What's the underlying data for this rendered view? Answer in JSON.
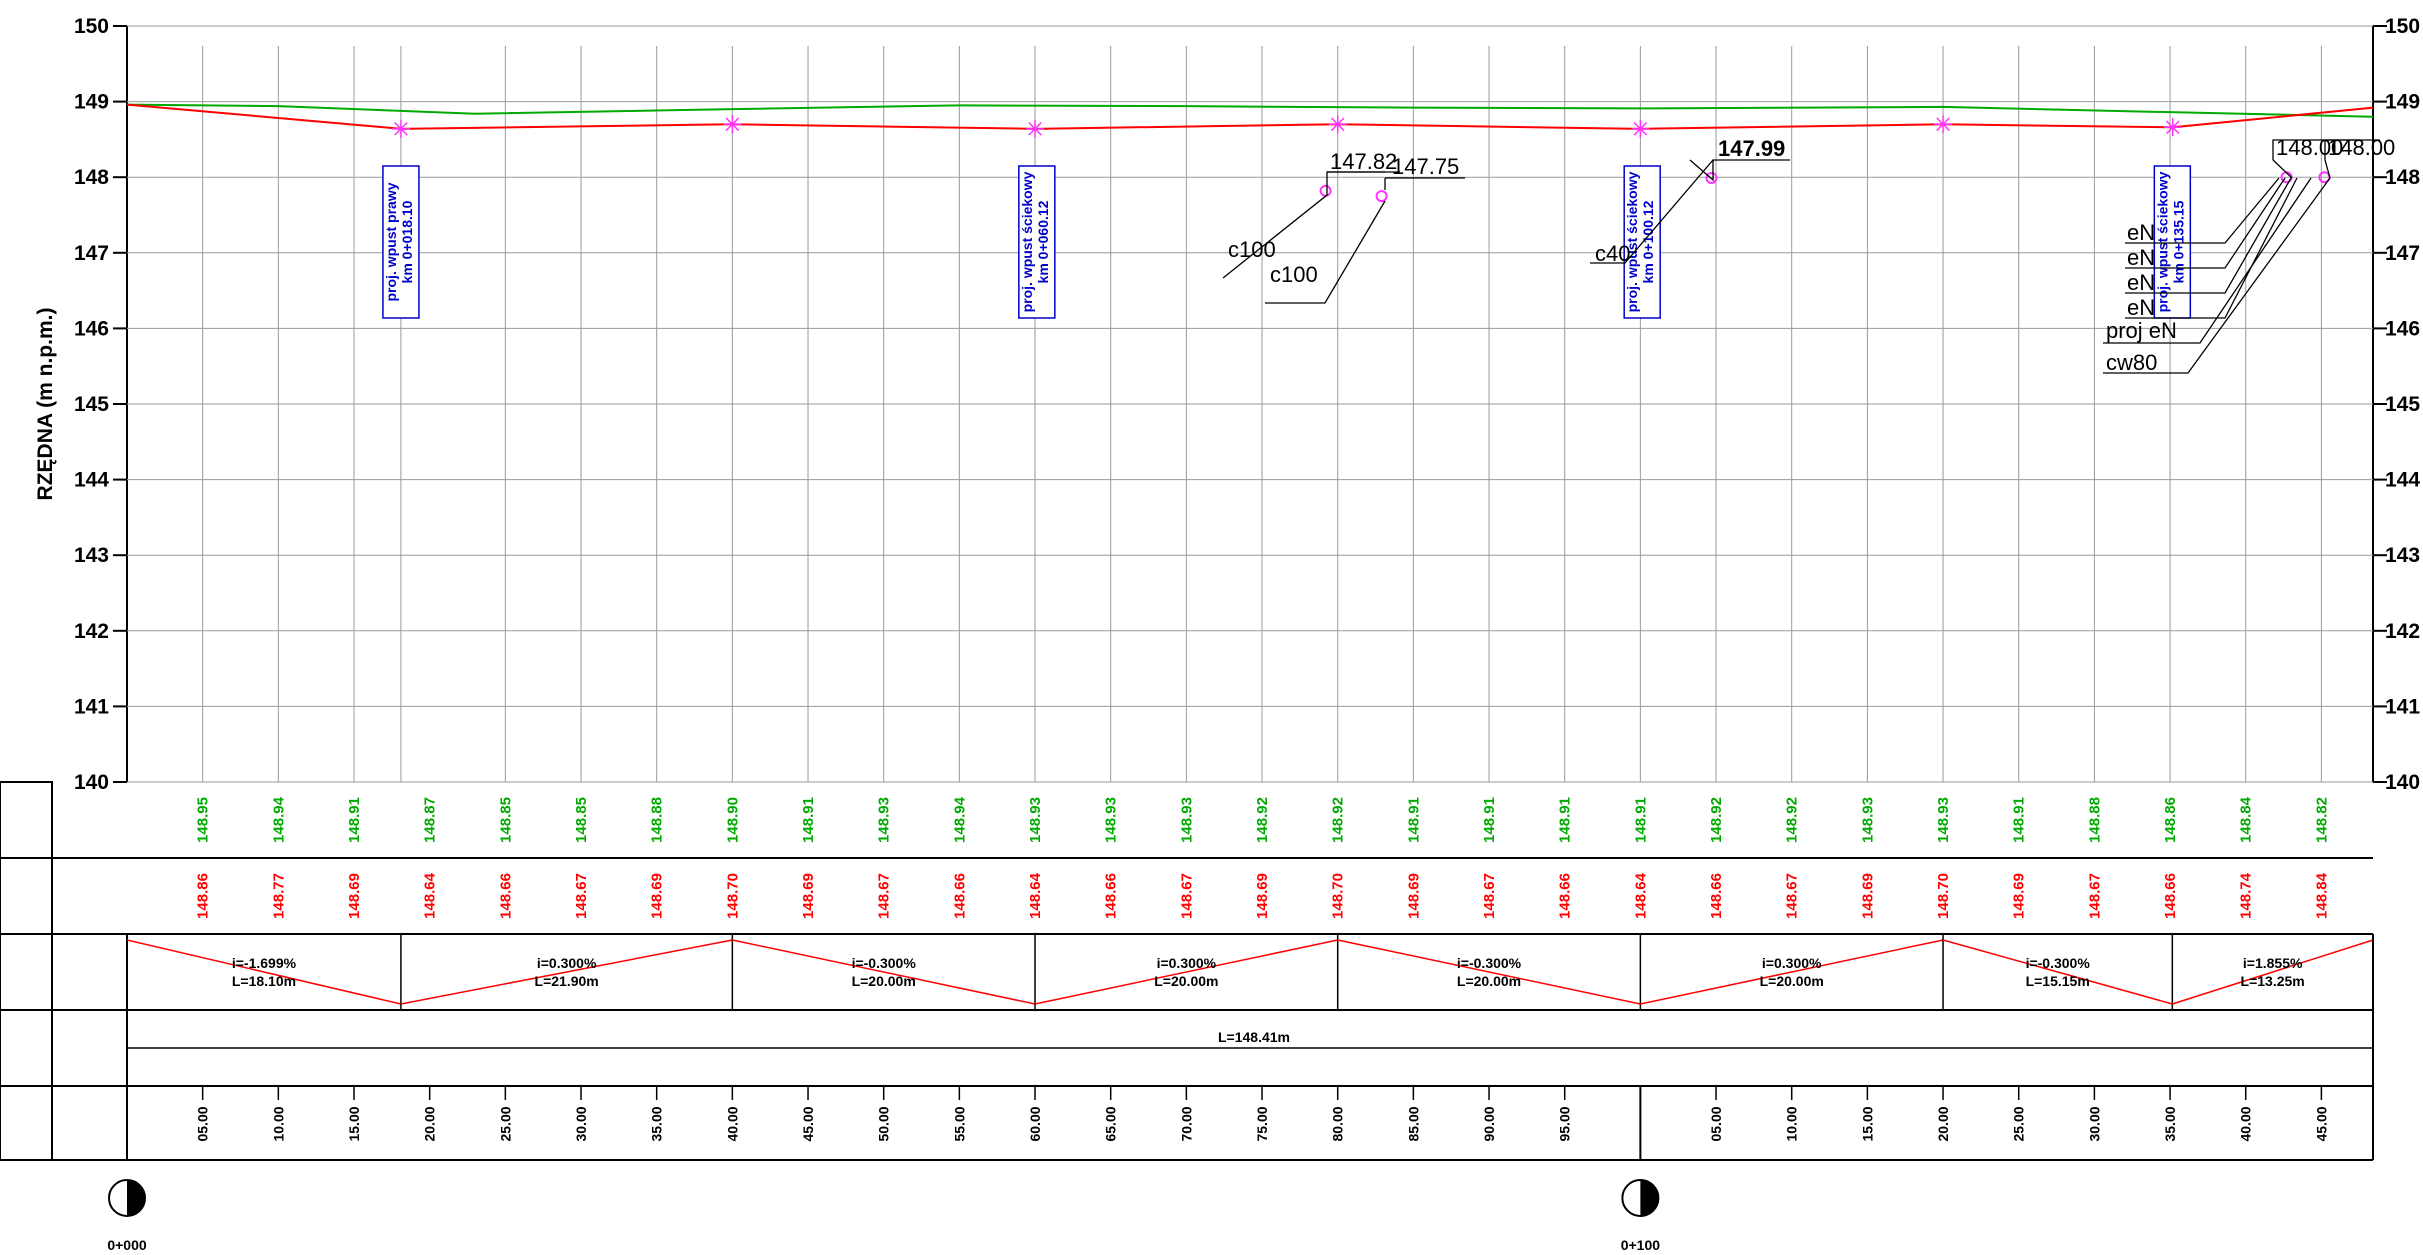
{
  "chart_data": {
    "type": "line",
    "ylabel": "RZĘDNA (m n.p.m.)",
    "ylim": [
      140,
      150
    ],
    "y_ticks": [
      "150",
      "149",
      "148",
      "147",
      "146",
      "145",
      "144",
      "143",
      "142",
      "141",
      "140"
    ],
    "xlim": [
      0,
      148.41
    ],
    "grid_x": [
      5,
      10,
      15,
      18.1,
      25,
      30,
      35,
      40,
      45,
      50,
      55,
      60,
      65,
      70,
      75,
      80,
      85,
      90,
      95,
      100,
      105,
      110,
      115,
      120,
      125,
      130,
      135,
      140,
      145
    ],
    "series": [
      {
        "color": "#00aa00",
        "x": [
          0,
          10,
          23,
          40,
          55,
          70,
          85,
          100,
          120,
          135,
          148.41
        ],
        "y": [
          148.96,
          148.94,
          148.84,
          148.9,
          148.95,
          148.94,
          148.92,
          148.91,
          148.93,
          148.86,
          148.8
        ]
      },
      {
        "color": "#ff0000",
        "x": [
          0,
          18.1,
          40,
          60,
          80,
          100,
          120,
          135.18,
          148.41
        ],
        "y": [
          148.96,
          148.64,
          148.7,
          148.64,
          148.7,
          148.64,
          148.7,
          148.66,
          148.92
        ]
      }
    ],
    "star_markers": {
      "color": "#ff33ff",
      "x": [
        18.1,
        40,
        60,
        80,
        100,
        120,
        135.18
      ],
      "y": [
        148.64,
        148.7,
        148.64,
        148.7,
        148.64,
        148.7,
        148.66
      ]
    },
    "circle_markers": {
      "color": "#ff33ff",
      "x": [
        79.2,
        82.9,
        104.7,
        142.7,
        145.2
      ],
      "y": [
        147.82,
        147.75,
        147.99,
        148.0,
        148.0
      ]
    },
    "terrain_row": {
      "x": [
        5,
        10,
        15,
        20,
        25,
        30,
        35,
        40,
        45,
        50,
        55,
        60,
        65,
        70,
        75,
        80,
        85,
        90,
        95,
        100,
        105,
        110,
        115,
        120,
        125,
        130,
        135,
        140,
        145
      ],
      "labels": [
        "148.95",
        "148.94",
        "148.91",
        "148.87",
        "148.85",
        "148.85",
        "148.88",
        "148.90",
        "148.91",
        "148.93",
        "148.94",
        "148.93",
        "148.93",
        "148.93",
        "148.92",
        "148.92",
        "148.91",
        "148.91",
        "148.91",
        "148.91",
        "148.92",
        "148.92",
        "148.93",
        "148.93",
        "148.91",
        "148.88",
        "148.86",
        "148.84",
        "148.82"
      ]
    },
    "design_row": {
      "x": [
        5,
        10,
        15,
        20,
        25,
        30,
        35,
        40,
        45,
        50,
        55,
        60,
        65,
        70,
        75,
        80,
        85,
        90,
        95,
        100,
        105,
        110,
        115,
        120,
        125,
        130,
        135,
        140,
        145
      ],
      "labels": [
        "148.86",
        "148.77",
        "148.69",
        "148.64",
        "148.66",
        "148.67",
        "148.69",
        "148.70",
        "148.69",
        "148.67",
        "148.66",
        "148.64",
        "148.66",
        "148.67",
        "148.69",
        "148.70",
        "148.69",
        "148.67",
        "148.66",
        "148.64",
        "148.66",
        "148.67",
        "148.69",
        "148.70",
        "148.69",
        "148.67",
        "148.66",
        "148.74",
        "148.84"
      ]
    },
    "slopes": [
      {
        "x0": 0,
        "x1": 18.1,
        "dir": "down",
        "i": "i=-1.699%",
        "L": "L=18.10m"
      },
      {
        "x0": 18.1,
        "x1": 40,
        "dir": "up",
        "i": "i=0.300%",
        "L": "L=21.90m"
      },
      {
        "x0": 40,
        "x1": 60,
        "dir": "down",
        "i": "i=-0.300%",
        "L": "L=20.00m"
      },
      {
        "x0": 60,
        "x1": 80,
        "dir": "up",
        "i": "i=0.300%",
        "L": "L=20.00m"
      },
      {
        "x0": 80,
        "x1": 100,
        "dir": "down",
        "i": "i=-0.300%",
        "L": "L=20.00m"
      },
      {
        "x0": 100,
        "x1": 120,
        "dir": "up",
        "i": "i=0.300%",
        "L": "L=20.00m"
      },
      {
        "x0": 120,
        "x1": 135.15,
        "dir": "down",
        "i": "i=-0.300%",
        "L": "L=15.15m"
      },
      {
        "x0": 135.15,
        "x1": 148.41,
        "dir": "up",
        "i": "i=1.855%",
        "L": "L=13.25m"
      }
    ],
    "total_length": "L=148.41m",
    "distance_row": {
      "x": [
        5,
        10,
        15,
        20,
        25,
        30,
        35,
        40,
        45,
        50,
        55,
        60,
        65,
        70,
        75,
        80,
        85,
        90,
        95,
        105,
        110,
        115,
        120,
        125,
        130,
        135,
        140,
        145
      ],
      "labels": [
        "05.00",
        "10.00",
        "15.00",
        "20.00",
        "25.00",
        "30.00",
        "35.00",
        "40.00",
        "45.00",
        "50.00",
        "55.00",
        "60.00",
        "65.00",
        "70.00",
        "75.00",
        "80.00",
        "85.00",
        "90.00",
        "95.00",
        "05.00",
        "10.00",
        "15.00",
        "20.00",
        "25.00",
        "30.00",
        "35.00",
        "40.00",
        "45.00"
      ]
    },
    "chainage_marks": [
      {
        "x": 0,
        "label": "0+000"
      },
      {
        "x": 100,
        "label": "0+100"
      }
    ],
    "inlet_boxes": [
      {
        "x": 18.1,
        "line1": "proj. wpust prawy",
        "line2": "km 0+018.10"
      },
      {
        "x": 60.12,
        "line1": "proj. wpust ściekowy",
        "line2": "km 0+060.12"
      },
      {
        "x": 100.12,
        "line1": "proj. wpust ściekowy",
        "line2": "km 0+100.12"
      },
      {
        "x": 135.15,
        "line1": "proj. wpust ściekowy",
        "line2": "km 0+135.15"
      }
    ],
    "callouts": {
      "v1": "147.82",
      "v2": "147.75",
      "v3": "147.99",
      "v4": "148.00",
      "v5": "148.00",
      "c1": "c100",
      "c2": "c100",
      "c3": "c40",
      "e1": "eN",
      "e2": "eN",
      "e3": "eN",
      "e4": "eN",
      "e5": "proj eN",
      "e6": "cw80"
    }
  }
}
